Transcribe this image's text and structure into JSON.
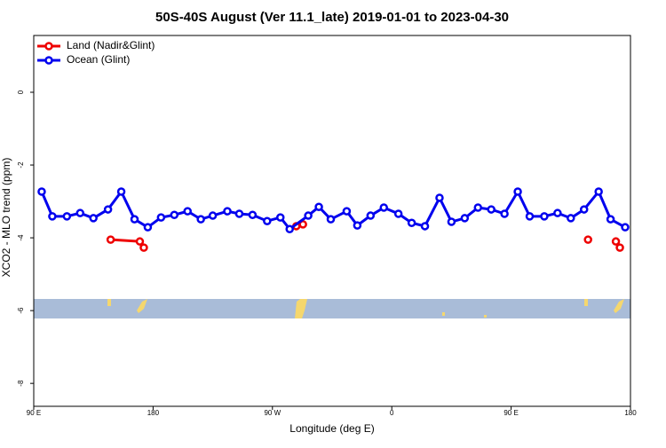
{
  "chart_data": {
    "type": "line",
    "title": "50S-40S August (Ver 11.1_late)   2019-01-01 to 2023-04-30",
    "x_label": "Longitude (deg E)",
    "y_label": "XCO2 - MLO trend (ppm)",
    "xlim": [
      90,
      540
    ],
    "ylim": [
      -8.63,
      1.56
    ],
    "xticks": [
      {
        "value": 90,
        "label": "90 E"
      },
      {
        "value": 180,
        "label": "180"
      },
      {
        "value": 270,
        "label": "90 W"
      },
      {
        "value": 360,
        "label": "0"
      },
      {
        "value": 450,
        "label": "90 E"
      },
      {
        "value": 540,
        "label": "180"
      }
    ],
    "yticks": [
      0,
      -2,
      -4,
      -6,
      -8
    ],
    "legend": "top-left",
    "series": [
      {
        "name": "Land (Nadir&Glint)",
        "color": "#ee0000",
        "x": [
          148,
          170,
          173,
          null,
          288,
          293,
          null,
          508,
          null,
          529,
          532
        ],
        "values": [
          -4.05,
          -4.1,
          -4.27,
          null,
          -3.68,
          -3.63,
          null,
          -4.05,
          null,
          -4.1,
          -4.27
        ]
      },
      {
        "name": "Ocean (Glint)",
        "color": "#0000ee",
        "x": [
          96,
          104,
          115,
          125,
          135,
          146,
          156,
          166,
          176,
          186,
          196,
          206,
          216,
          225,
          236,
          245,
          255,
          266,
          276,
          283,
          297,
          305,
          314,
          326,
          334,
          344,
          354,
          365,
          375,
          385,
          396,
          405,
          415,
          425,
          435,
          445,
          455,
          464,
          475,
          485,
          495,
          505,
          516,
          525,
          536
        ],
        "values": [
          -2.73,
          -3.41,
          -3.41,
          -3.32,
          -3.46,
          -3.22,
          -2.73,
          -3.49,
          -3.71,
          -3.44,
          -3.37,
          -3.27,
          -3.49,
          -3.39,
          -3.27,
          -3.34,
          -3.37,
          -3.54,
          -3.44,
          -3.76,
          -3.39,
          -3.15,
          -3.49,
          -3.27,
          -3.66,
          -3.39,
          -3.17,
          -3.34,
          -3.59,
          -3.68,
          -2.9,
          -3.56,
          -3.46,
          -3.17,
          -3.22,
          -3.34,
          -2.73,
          -3.41,
          -3.41,
          -3.32,
          -3.46,
          -3.22,
          -2.73,
          -3.49,
          -3.71
        ]
      }
    ]
  }
}
